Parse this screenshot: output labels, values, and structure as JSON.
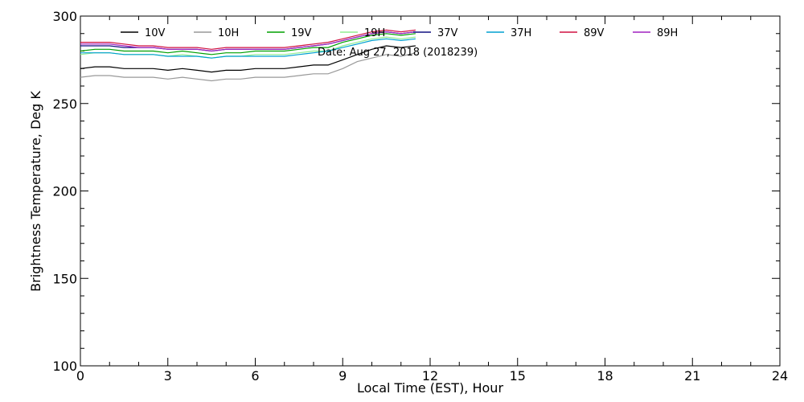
{
  "chart_data": {
    "type": "line",
    "xlabel": "Local Time (EST), Hour",
    "ylabel": "Brightness Temperature, Deg K",
    "xlim": [
      0,
      24
    ],
    "ylim": [
      100,
      300
    ],
    "xticks": [
      0,
      3,
      6,
      9,
      12,
      15,
      18,
      21,
      24
    ],
    "yticks": [
      100,
      150,
      200,
      250,
      300
    ],
    "xtick_labels": [
      "0",
      "3",
      "6",
      "9",
      "12",
      "15",
      "18",
      "21",
      "24"
    ],
    "ytick_labels": [
      "100",
      "150",
      "200",
      "250",
      "300"
    ],
    "annotation": "Date: Aug 27, 2018 (2018239)",
    "legend_placement": "top",
    "x": [
      0,
      0.5,
      1,
      1.5,
      2,
      2.5,
      3,
      3.5,
      4,
      4.5,
      5,
      5.5,
      6,
      6.5,
      7,
      7.5,
      8,
      8.5,
      9,
      9.5,
      10,
      10.5,
      11,
      11.5
    ],
    "series": [
      {
        "name": "10V",
        "color": "#000000",
        "values": [
          270,
          271,
          271,
          270,
          270,
          270,
          269,
          270,
          269,
          268,
          269,
          269,
          270,
          270,
          270,
          271,
          272,
          272,
          275,
          278,
          281,
          283,
          282,
          283
        ]
      },
      {
        "name": "10H",
        "color": "#999999",
        "values": [
          265,
          266,
          266,
          265,
          265,
          265,
          264,
          265,
          264,
          263,
          264,
          264,
          265,
          265,
          265,
          266,
          267,
          267,
          270,
          274,
          276,
          278,
          277,
          279
        ]
      },
      {
        "name": "19V",
        "color": "#00a000",
        "values": [
          280,
          281,
          281,
          280,
          280,
          280,
          279,
          280,
          279,
          278,
          279,
          279,
          280,
          280,
          280,
          281,
          282,
          282,
          285,
          287,
          289,
          290,
          289,
          290
        ]
      },
      {
        "name": "19H",
        "color": "#90ee90",
        "values": [
          278,
          279,
          279,
          278,
          278,
          278,
          277,
          278,
          277,
          276,
          277,
          277,
          278,
          278,
          278,
          279,
          280,
          280,
          283,
          285,
          287,
          288,
          287,
          288
        ]
      },
      {
        "name": "37V",
        "color": "#101080",
        "values": [
          283,
          283,
          283,
          282,
          282,
          282,
          281,
          281,
          281,
          280,
          281,
          281,
          281,
          281,
          281,
          282,
          283,
          284,
          286,
          288,
          290,
          291,
          290,
          291
        ]
      },
      {
        "name": "37H",
        "color": "#00a0d0",
        "values": [
          279,
          279,
          279,
          278,
          278,
          278,
          277,
          277,
          277,
          276,
          277,
          277,
          277,
          277,
          277,
          278,
          279,
          280,
          282,
          284,
          286,
          287,
          286,
          287
        ]
      },
      {
        "name": "89V",
        "color": "#d01040",
        "values": [
          285,
          285,
          285,
          284,
          283,
          283,
          282,
          282,
          282,
          281,
          282,
          282,
          282,
          282,
          282,
          283,
          284,
          285,
          287,
          289,
          291,
          292,
          291,
          292
        ]
      },
      {
        "name": "89H",
        "color": "#a020c0",
        "values": [
          284,
          284,
          284,
          283,
          282,
          282,
          281,
          281,
          281,
          280,
          281,
          281,
          281,
          281,
          281,
          282,
          283,
          284,
          286,
          288,
          290,
          291,
          290,
          291
        ]
      }
    ]
  }
}
